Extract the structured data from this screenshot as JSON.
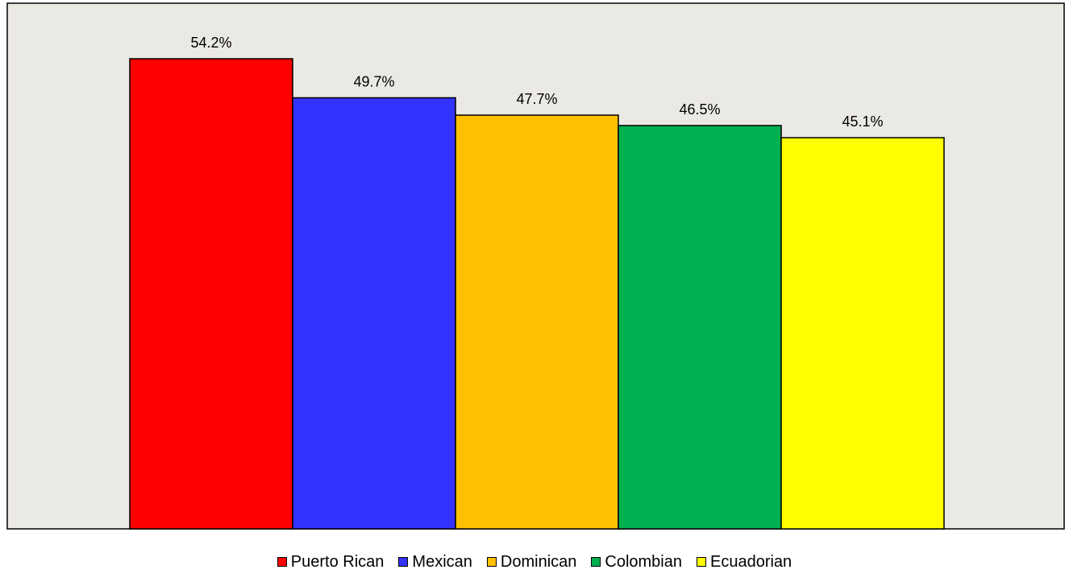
{
  "chart_data": {
    "type": "bar",
    "categories": [
      "Puerto Rican",
      "Mexican",
      "Dominican",
      "Colombian",
      "Ecuadorian"
    ],
    "values": [
      54.2,
      49.7,
      47.7,
      46.5,
      45.1
    ],
    "value_labels": [
      "54.2%",
      "49.7%",
      "47.7%",
      "46.5%",
      "45.1%"
    ],
    "unit": "%",
    "colors": [
      "#ff0000",
      "#3333ff",
      "#ffc000",
      "#00b050",
      "#ffff00"
    ],
    "plot_background": "#ebe9e3",
    "title": "",
    "xlabel": "",
    "ylabel": "",
    "ylim": [
      0,
      54.2
    ],
    "grid": false,
    "legend": "bottom"
  }
}
